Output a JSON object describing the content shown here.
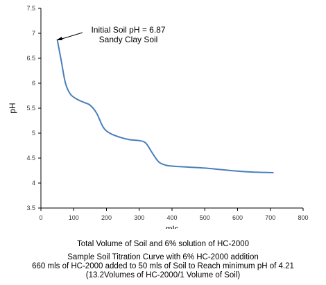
{
  "chart_data": {
    "type": "line",
    "xlabel": "mls",
    "ylabel": "pH",
    "xlim": [
      0,
      800
    ],
    "ylim": [
      3.5,
      7.5
    ],
    "x_ticks": [
      0,
      100,
      200,
      300,
      400,
      500,
      600,
      700,
      800
    ],
    "y_ticks": [
      3.5,
      4,
      4.5,
      5,
      5.5,
      6,
      6.5,
      7,
      7.5
    ],
    "grid": false,
    "line_color": "#4a7ebb",
    "series": [
      {
        "x": [
          50,
          62,
          75,
          90,
          110,
          130,
          150,
          170,
          190,
          210,
          240,
          270,
          300,
          320,
          340,
          360,
          380,
          400,
          450,
          500,
          550,
          600,
          650,
          700,
          710
        ],
        "y": [
          6.87,
          6.45,
          6.0,
          5.78,
          5.68,
          5.62,
          5.56,
          5.4,
          5.12,
          5.0,
          4.92,
          4.87,
          4.85,
          4.8,
          4.6,
          4.42,
          4.36,
          4.34,
          4.32,
          4.3,
          4.27,
          4.24,
          4.22,
          4.21,
          4.21
        ]
      }
    ],
    "annotation": {
      "lines": [
        "Initial Soil pH = 6.87",
        "Sandy Clay Soil"
      ],
      "points_to": {
        "x": 50,
        "y": 6.87
      }
    }
  },
  "captions": {
    "line1": "Total Volume of Soil and 6% solution of HC-2000",
    "line2": "Sample Soil Titration Curve with 6% HC-2000 addition",
    "line3": "660 mls of HC-2000 added to 50 mls of Soil to Reach minimum pH of 4.21",
    "line4": "(13.2Volumes of HC-2000/1 Volume of Soil)"
  }
}
